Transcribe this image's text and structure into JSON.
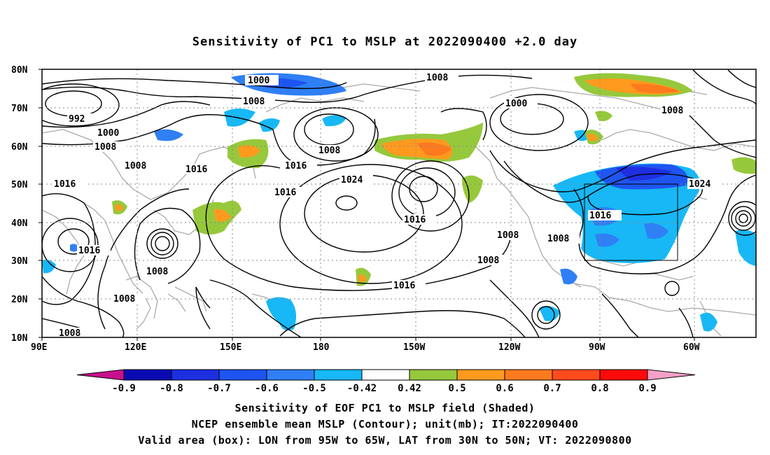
{
  "title": "Sensitivity of PC1 to MSLP at 2022090400 +2.0 day",
  "lat_ticks": [
    "80N",
    "70N",
    "60N",
    "50N",
    "40N",
    "30N",
    "20N",
    "10N"
  ],
  "lon_ticks": [
    "90E",
    "120E",
    "150E",
    "180",
    "150W",
    "120W",
    "90W",
    "60W"
  ],
  "contour_labels": [
    "1000",
    "1008",
    "1008",
    "992",
    "1000",
    "1008",
    "1008",
    "1016",
    "1016",
    "1016",
    "1024",
    "1016",
    "1016",
    "1008",
    "1008",
    "1008",
    "1008",
    "1016",
    "1008",
    "1008",
    "1000",
    "1008",
    "1016",
    "1024",
    "1016",
    "1008"
  ],
  "colorbar": {
    "labels": [
      "-0.9",
      "-0.8",
      "-0.7",
      "-0.6",
      "-0.5",
      "-0.42",
      "0.42",
      "0.5",
      "0.6",
      "0.7",
      "0.8",
      "0.9"
    ],
    "colors": [
      "#c8108c",
      "#0a0ab4",
      "#1e2fe0",
      "#1e55f0",
      "#2f7ff5",
      "#17b8f5",
      "#ffffff",
      "#96c83c",
      "#ff9a1e",
      "#ff7a1e",
      "#ff4a1e",
      "#ff0a0a",
      "#f5a0c8"
    ]
  },
  "captions": [
    "Sensitivity of EOF PC1 to MSLP field (Shaded)",
    "NCEP ensemble mean MSLP (Contour); unit(mb); IT:2022090400",
    "Valid area (box): LON from 95W to 65W, LAT from 30N to 50N; VT: 2022090800"
  ]
}
